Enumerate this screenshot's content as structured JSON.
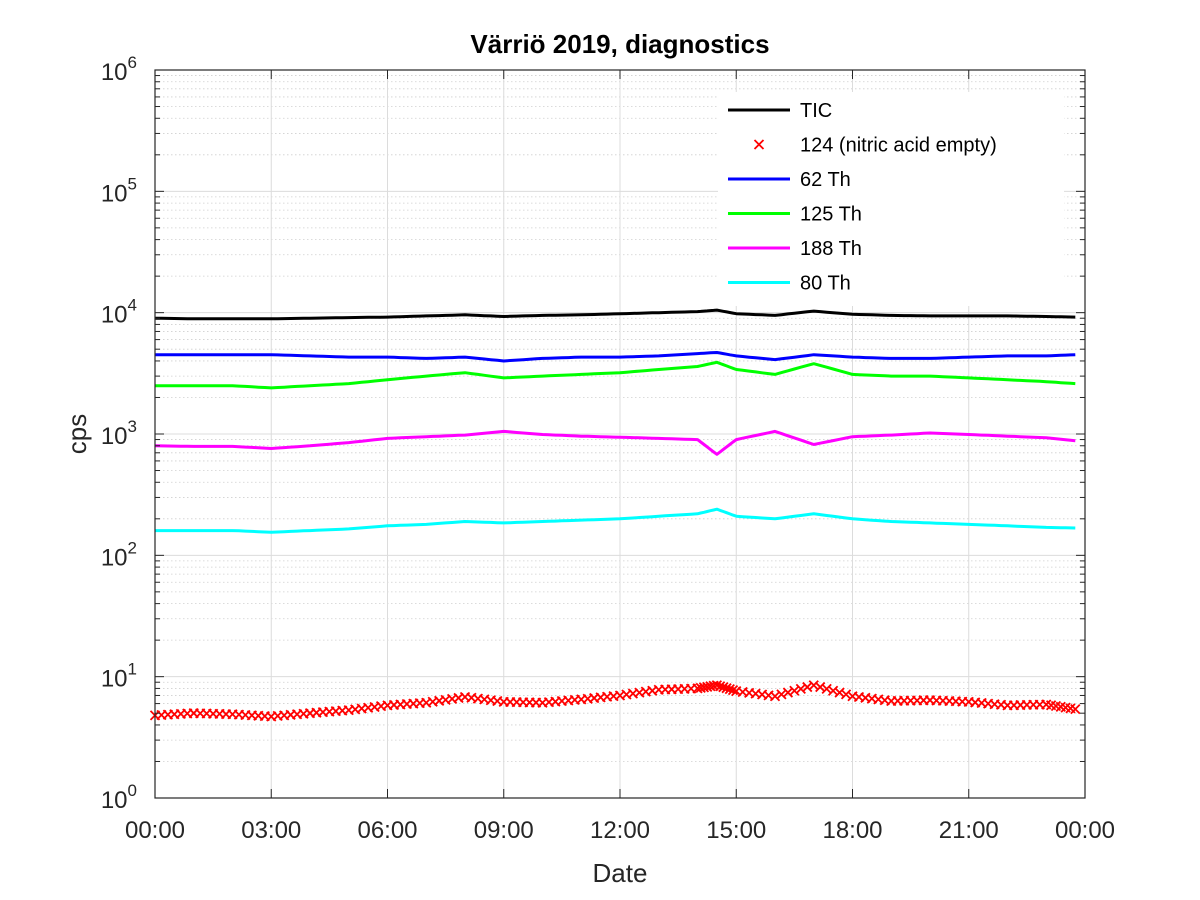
{
  "chart_data": {
    "type": "line",
    "title": "Värriö 2019, diagnostics",
    "xlabel": "Date",
    "ylabel": "cps",
    "yscale": "log",
    "ylim": [
      1,
      1000000
    ],
    "yticks": [
      {
        "value": 1,
        "base": "10",
        "exp": "0"
      },
      {
        "value": 10,
        "base": "10",
        "exp": "1"
      },
      {
        "value": 100,
        "base": "10",
        "exp": "2"
      },
      {
        "value": 1000,
        "base": "10",
        "exp": "3"
      },
      {
        "value": 10000,
        "base": "10",
        "exp": "4"
      },
      {
        "value": 100000,
        "base": "10",
        "exp": "5"
      },
      {
        "value": 1000000,
        "base": "10",
        "exp": "6"
      }
    ],
    "xlim": [
      "00:00",
      "24:00"
    ],
    "xticks": [
      "00:00",
      "03:00",
      "06:00",
      "09:00",
      "12:00",
      "15:00",
      "18:00",
      "21:00",
      "00:00"
    ],
    "grid": true,
    "legend_position": "top-right",
    "x": [
      "00:00",
      "01:00",
      "02:00",
      "03:00",
      "04:00",
      "05:00",
      "06:00",
      "07:00",
      "08:00",
      "09:00",
      "10:00",
      "11:00",
      "12:00",
      "13:00",
      "14:00",
      "14:30",
      "15:00",
      "16:00",
      "17:00",
      "18:00",
      "19:00",
      "20:00",
      "21:00",
      "22:00",
      "23:00",
      "23:45"
    ],
    "series": [
      {
        "name": "TIC",
        "color": "#000000",
        "style": "line",
        "values": [
          9000,
          8900,
          8900,
          8900,
          9000,
          9100,
          9200,
          9400,
          9600,
          9300,
          9500,
          9600,
          9800,
          10000,
          10200,
          10500,
          9800,
          9500,
          10300,
          9700,
          9500,
          9400,
          9400,
          9400,
          9300,
          9200
        ]
      },
      {
        "name": "124 (nitric acid empty)",
        "color": "#ff0000",
        "style": "marker",
        "values": [
          4.8,
          5.0,
          4.9,
          4.7,
          5.0,
          5.3,
          5.8,
          6.1,
          6.8,
          6.2,
          6.1,
          6.5,
          7.0,
          7.8,
          8.0,
          8.5,
          7.6,
          6.9,
          8.5,
          6.9,
          6.3,
          6.4,
          6.2,
          5.8,
          5.9,
          5.4
        ]
      },
      {
        "name": "62 Th",
        "color": "#0000ff",
        "style": "line",
        "values": [
          4500,
          4500,
          4500,
          4500,
          4400,
          4300,
          4300,
          4200,
          4300,
          4000,
          4200,
          4300,
          4300,
          4400,
          4600,
          4700,
          4400,
          4100,
          4500,
          4300,
          4200,
          4200,
          4300,
          4400,
          4400,
          4500
        ]
      },
      {
        "name": "125 Th",
        "color": "#00ff00",
        "style": "line",
        "values": [
          2500,
          2500,
          2500,
          2400,
          2500,
          2600,
          2800,
          3000,
          3200,
          2900,
          3000,
          3100,
          3200,
          3400,
          3600,
          3900,
          3400,
          3100,
          3800,
          3100,
          3000,
          3000,
          2900,
          2800,
          2700,
          2600
        ]
      },
      {
        "name": "188 Th",
        "color": "#ff00ff",
        "style": "line",
        "values": [
          800,
          790,
          790,
          760,
          800,
          850,
          920,
          950,
          980,
          1050,
          990,
          960,
          940,
          920,
          900,
          680,
          900,
          1050,
          820,
          950,
          980,
          1020,
          990,
          960,
          930,
          880
        ]
      },
      {
        "name": "80 Th",
        "color": "#00ffff",
        "style": "line",
        "values": [
          160,
          160,
          160,
          155,
          160,
          165,
          175,
          180,
          190,
          185,
          190,
          195,
          200,
          210,
          220,
          240,
          210,
          200,
          220,
          200,
          190,
          185,
          180,
          175,
          170,
          168
        ]
      }
    ]
  }
}
